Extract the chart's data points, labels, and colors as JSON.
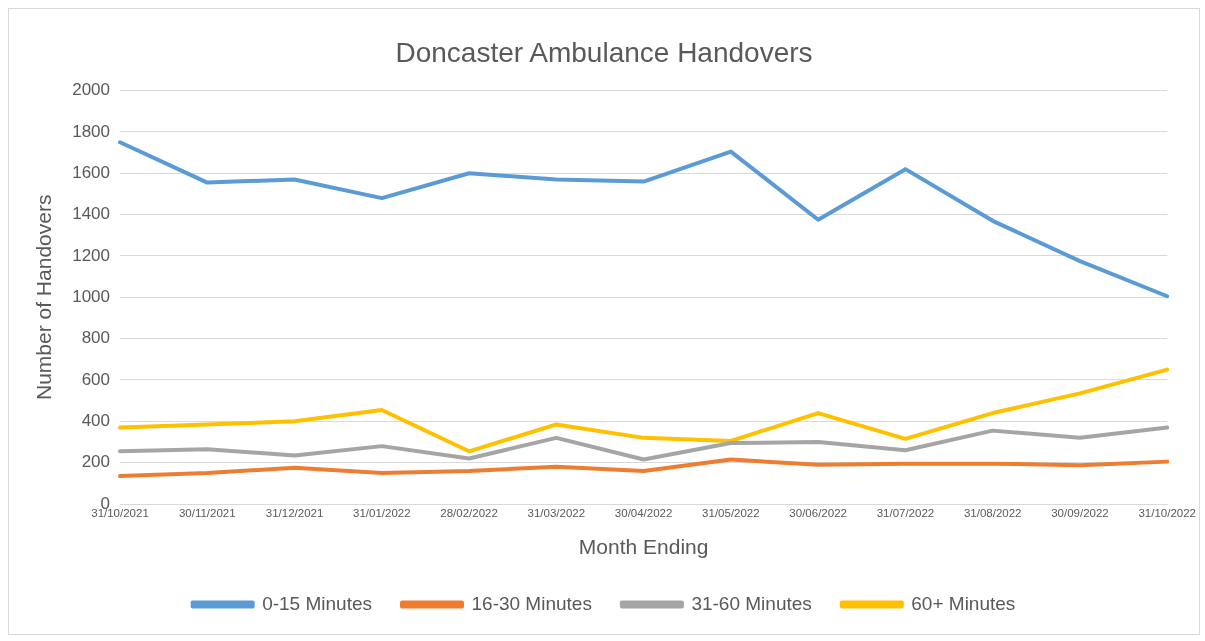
{
  "chart_data": {
    "type": "line",
    "title": "Doncaster Ambulance Handovers",
    "xlabel": "Month Ending",
    "ylabel": "Number of Handovers",
    "categories": [
      "31/10/2021",
      "30/11/2021",
      "31/12/2021",
      "31/01/2022",
      "28/02/2022",
      "31/03/2022",
      "30/04/2022",
      "31/05/2022",
      "30/06/2022",
      "31/07/2022",
      "31/08/2022",
      "30/09/2022",
      "31/10/2022"
    ],
    "series": [
      {
        "name": "0-15 Minutes",
        "color": "#5b9bd5",
        "values": [
          1750,
          1555,
          1570,
          1480,
          1600,
          1570,
          1560,
          1705,
          1375,
          1620,
          1370,
          1175,
          1005
        ]
      },
      {
        "name": "16-30 Minutes",
        "color": "#ed7d31",
        "values": [
          135,
          150,
          175,
          150,
          160,
          180,
          160,
          215,
          190,
          195,
          195,
          188,
          205
        ]
      },
      {
        "name": "31-60 Minutes",
        "color": "#a5a5a5",
        "values": [
          255,
          265,
          235,
          280,
          220,
          320,
          215,
          295,
          300,
          260,
          355,
          320,
          370
        ]
      },
      {
        "name": "60+ Minutes",
        "color": "#ffc000",
        "values": [
          370,
          385,
          400,
          455,
          255,
          385,
          320,
          305,
          440,
          315,
          440,
          535,
          650
        ]
      }
    ],
    "ylim": [
      0,
      2000
    ],
    "yticks": [
      0,
      200,
      400,
      600,
      800,
      1000,
      1200,
      1400,
      1600,
      1800,
      2000
    ],
    "grid": "y",
    "legend": "bottom",
    "marker": "none",
    "line_style": "solid"
  }
}
